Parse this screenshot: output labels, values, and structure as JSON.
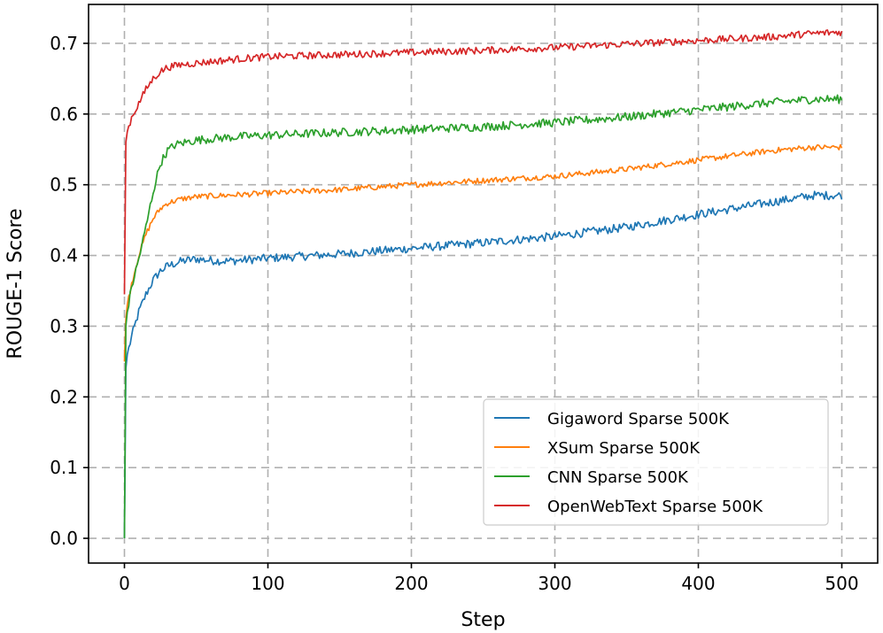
{
  "chart_data": {
    "type": "line",
    "title": "",
    "xlabel": "Step",
    "ylabel": "ROUGE-1 Score",
    "xlim": [
      -25,
      525
    ],
    "ylim": [
      -0.035,
      0.755
    ],
    "xticks": [
      0,
      100,
      200,
      300,
      400,
      500
    ],
    "yticks": [
      0.0,
      0.1,
      0.2,
      0.3,
      0.4,
      0.5,
      0.6,
      0.7
    ],
    "xtick_labels": [
      "0",
      "100",
      "200",
      "300",
      "400",
      "500"
    ],
    "ytick_labels": [
      "0.0",
      "0.1",
      "0.2",
      "0.3",
      "0.4",
      "0.5",
      "0.6",
      "0.7"
    ],
    "grid": true,
    "legend_position": "lower-right",
    "series": [
      {
        "name": "Gigaword Sparse 500K",
        "color": "#1f77b4",
        "start": 0.0,
        "x": [
          0,
          1,
          2,
          5,
          10,
          15,
          20,
          25,
          30,
          40,
          50,
          60,
          70,
          80,
          100,
          150,
          200,
          250,
          300,
          350,
          400,
          450,
          480,
          500
        ],
        "values": [
          0.0,
          0.24,
          0.26,
          0.285,
          0.32,
          0.345,
          0.365,
          0.378,
          0.385,
          0.392,
          0.395,
          0.393,
          0.392,
          0.393,
          0.396,
          0.402,
          0.41,
          0.418,
          0.427,
          0.44,
          0.458,
          0.475,
          0.485,
          0.485
        ],
        "noise": 0.006
      },
      {
        "name": "XSum Sparse 500K",
        "color": "#ff7f0e",
        "start": 0.25,
        "x": [
          0,
          1,
          2,
          5,
          10,
          15,
          20,
          25,
          30,
          40,
          50,
          60,
          80,
          100,
          150,
          200,
          250,
          300,
          350,
          400,
          450,
          480,
          500
        ],
        "values": [
          0.25,
          0.31,
          0.33,
          0.36,
          0.4,
          0.43,
          0.452,
          0.466,
          0.474,
          0.48,
          0.483,
          0.484,
          0.486,
          0.488,
          0.493,
          0.5,
          0.506,
          0.512,
          0.522,
          0.535,
          0.548,
          0.553,
          0.553
        ],
        "noise": 0.004
      },
      {
        "name": "CNN Sparse 500K",
        "color": "#2ca02c",
        "start": 0.0,
        "x": [
          0,
          1,
          2,
          5,
          10,
          15,
          20,
          25,
          30,
          35,
          40,
          50,
          60,
          80,
          100,
          150,
          200,
          250,
          300,
          350,
          400,
          450,
          480,
          500
        ],
        "values": [
          0.0,
          0.3,
          0.32,
          0.355,
          0.395,
          0.44,
          0.49,
          0.53,
          0.548,
          0.556,
          0.559,
          0.563,
          0.565,
          0.568,
          0.57,
          0.574,
          0.578,
          0.582,
          0.588,
          0.596,
          0.606,
          0.616,
          0.621,
          0.621
        ],
        "noise": 0.006
      },
      {
        "name": "OpenWebText Sparse 500K",
        "color": "#d62728",
        "start": 0.345,
        "x": [
          0,
          1,
          2,
          5,
          10,
          15,
          20,
          25,
          30,
          40,
          50,
          60,
          80,
          100,
          150,
          200,
          250,
          300,
          350,
          400,
          450,
          480,
          500
        ],
        "values": [
          0.345,
          0.56,
          0.575,
          0.595,
          0.615,
          0.635,
          0.65,
          0.66,
          0.666,
          0.67,
          0.672,
          0.674,
          0.678,
          0.681,
          0.684,
          0.687,
          0.69,
          0.694,
          0.699,
          0.704,
          0.709,
          0.714,
          0.716
        ],
        "noise": 0.005
      }
    ]
  }
}
